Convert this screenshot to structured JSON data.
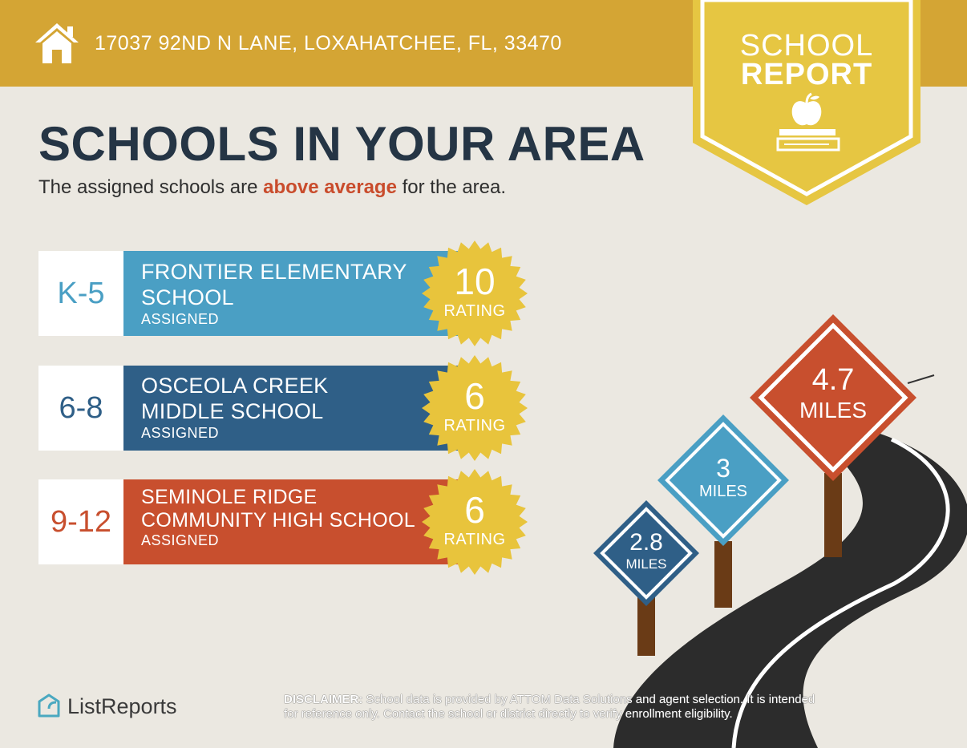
{
  "header": {
    "address": "17037 92ND N LANE, LOXAHATCHEE, FL, 33470",
    "home_icon": "house-icon"
  },
  "badge": {
    "line1": "SCHOOL",
    "line2": "REPORT",
    "icon": "apple-on-book-icon"
  },
  "main": {
    "title": "SCHOOLS IN YOUR AREA",
    "subtitle_before": "The assigned schools are ",
    "subtitle_highlight": "above average",
    "subtitle_after": " for the area."
  },
  "schools": [
    {
      "grades": "K-5",
      "name_line1": "FRONTIER ELEMENTARY",
      "name_line2": "SCHOOL",
      "status": "ASSIGNED",
      "rating": "10",
      "rating_label": "RATING",
      "band_color": "#4a9fc4",
      "grade_color": "#4a9fc4"
    },
    {
      "grades": "6-8",
      "name_line1": "OSCEOLA CREEK",
      "name_line2": "MIDDLE SCHOOL",
      "status": "ASSIGNED",
      "rating": "6",
      "rating_label": "RATING",
      "band_color": "#2f5f87",
      "grade_color": "#2f5f87"
    },
    {
      "grades": "9-12",
      "name_line1": "SEMINOLE RIDGE",
      "name_line2": "COMMUNITY HIGH SCHOOL",
      "status": "ASSIGNED",
      "rating": "6",
      "rating_label": "RATING",
      "band_color": "#c84f2e",
      "grade_color": "#c84f2e"
    }
  ],
  "distances": [
    {
      "value": "2.8",
      "unit": "MILES",
      "color": "#2f5f87"
    },
    {
      "value": "3",
      "unit": "MILES",
      "color": "#4a9fc4"
    },
    {
      "value": "4.7",
      "unit": "MILES",
      "color": "#c84f2e"
    }
  ],
  "footer": {
    "brand": "ListReports",
    "disclaimer_label": "DISCLAIMER:",
    "disclaimer_line1": " School data is provided by ATTOM Data Solutions and agent selection. It is intended",
    "disclaimer_line2": "for reference only. Contact the school or district directly to verify enrollment eligibility."
  }
}
